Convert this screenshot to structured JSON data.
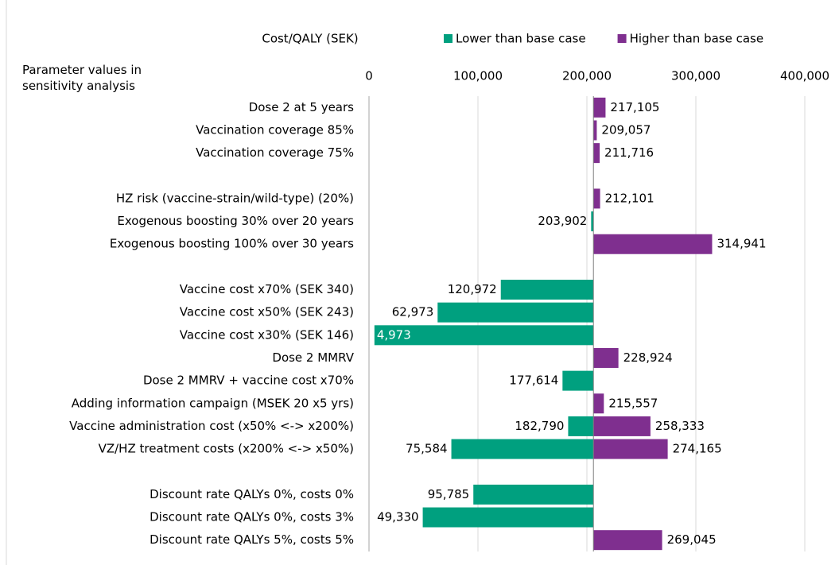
{
  "chart_data": {
    "type": "tornado",
    "x_axis_label": "Cost/QALY (SEK)",
    "y_axis_label": "Parameter values in sensitivity analysis",
    "base_value": 206000,
    "xlim": [
      0,
      400000
    ],
    "xticks": [
      0,
      {
        "value": 100000,
        "label": "100,000"
      },
      {
        "value": 200000,
        "label": "200,000"
      },
      {
        "value": 300000,
        "label": "300,000"
      },
      {
        "value": 400000,
        "label": "400,000"
      }
    ],
    "grid": true,
    "legend": "top",
    "categories": [
      "Dose 2 at 5 years",
      "Vaccination coverage 85%",
      "Vaccination coverage 75%",
      null,
      "HZ risk (vaccine-strain/wild-type) (20%)",
      "Exogenous boosting 30% over 20 years",
      "Exogenous boosting 100% over 30 years",
      null,
      "Vaccine cost x70% (SEK 340)",
      "Vaccine cost x50% (SEK 243)",
      "Vaccine cost x30% (SEK 146)",
      "Dose 2 MMRV",
      "Dose 2 MMRV + vaccine cost x70%",
      "Adding information campaign (MSEK 20 x5 yrs)",
      "Vaccine administration cost (x50% <-> x200%)",
      "VZ/HZ treatment costs (x200% <-> x50%)",
      null,
      "Discount rate QALYs 0%, costs 0%",
      "Discount rate QALYs 0%, costs 3%",
      "Discount rate QALYs 5%, costs 5%"
    ],
    "series": [
      {
        "name": "Lower than base case",
        "color": "#00a07f",
        "values": [
          null,
          null,
          null,
          null,
          null,
          203902,
          null,
          null,
          120972,
          62973,
          4973,
          null,
          177614,
          null,
          182790,
          75584,
          null,
          95785,
          49330,
          null
        ],
        "value_labels": [
          null,
          null,
          null,
          null,
          null,
          "203,902",
          null,
          null,
          "120,972",
          "62,973",
          "4,973",
          null,
          "177,614",
          null,
          "182,790",
          "75,584",
          null,
          "95,785",
          "49,330",
          null
        ]
      },
      {
        "name": "Higher than base case",
        "color": "#7f2f8f",
        "values": [
          217105,
          209057,
          211716,
          null,
          212101,
          null,
          314941,
          null,
          null,
          null,
          null,
          228924,
          null,
          215557,
          258333,
          274165,
          null,
          null,
          null,
          269045
        ],
        "value_labels": [
          "217,105",
          "209,057",
          "211,716",
          null,
          "212,101",
          null,
          "314,941",
          null,
          null,
          null,
          null,
          "228,924",
          null,
          "215,557",
          "258,333",
          "274,165",
          null,
          null,
          null,
          "269,045"
        ]
      }
    ]
  }
}
